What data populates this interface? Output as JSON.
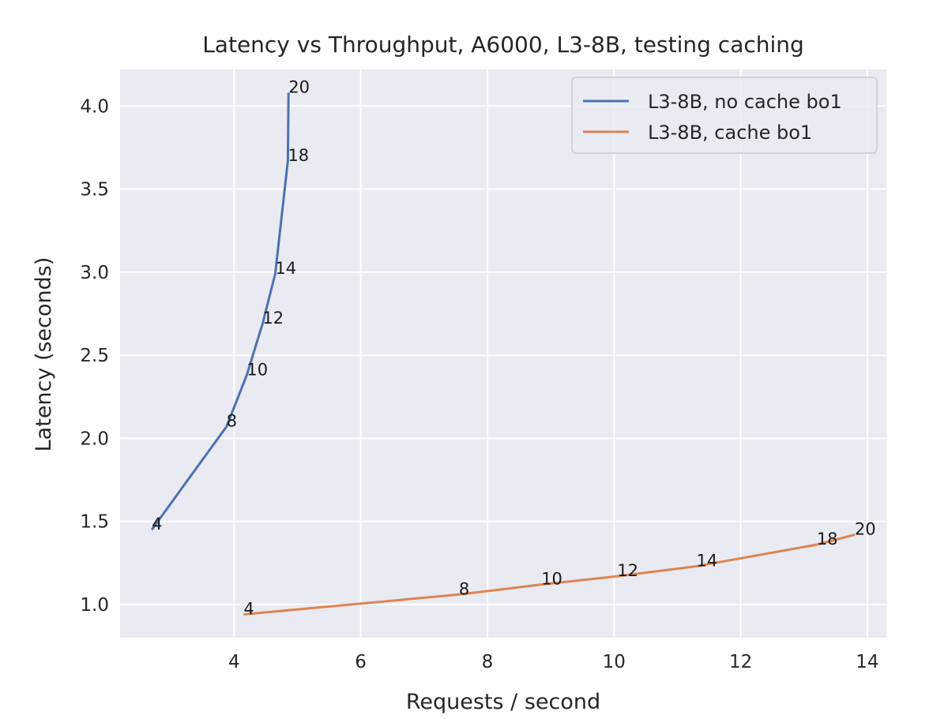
{
  "chart_data": {
    "type": "line",
    "title": "Latency vs Throughput, A6000, L3-8B, testing caching",
    "xlabel": "Requests / second",
    "ylabel": "Latency (seconds)",
    "xlim": [
      2.2,
      14.3
    ],
    "ylim": [
      0.8,
      4.22
    ],
    "xticks": [
      4,
      6,
      8,
      10,
      12,
      14
    ],
    "yticks": [
      1.0,
      1.5,
      2.0,
      2.5,
      3.0,
      3.5,
      4.0
    ],
    "grid": true,
    "legend_position": "top-right",
    "background": "#eaeaf2",
    "series": [
      {
        "name": "L3-8B, no cache bo1",
        "color": "#4c72b0",
        "points": [
          {
            "x": 2.7,
            "y": 1.45,
            "label": "4"
          },
          {
            "x": 3.88,
            "y": 2.07,
            "label": "8"
          },
          {
            "x": 4.2,
            "y": 2.38,
            "label": "10"
          },
          {
            "x": 4.45,
            "y": 2.69,
            "label": "12"
          },
          {
            "x": 4.65,
            "y": 2.99,
            "label": "14"
          },
          {
            "x": 4.85,
            "y": 3.67,
            "label": "18"
          },
          {
            "x": 4.86,
            "y": 4.08,
            "label": "20"
          }
        ]
      },
      {
        "name": "L3-8B, cache bo1",
        "color": "#dd8452",
        "points": [
          {
            "x": 4.15,
            "y": 0.94,
            "label": "4"
          },
          {
            "x": 7.55,
            "y": 1.06,
            "label": "8"
          },
          {
            "x": 8.85,
            "y": 1.12,
            "label": "10"
          },
          {
            "x": 10.05,
            "y": 1.17,
            "label": "12"
          },
          {
            "x": 11.3,
            "y": 1.23,
            "label": "14"
          },
          {
            "x": 13.2,
            "y": 1.36,
            "label": "18"
          },
          {
            "x": 13.8,
            "y": 1.42,
            "label": "20"
          }
        ]
      }
    ]
  }
}
